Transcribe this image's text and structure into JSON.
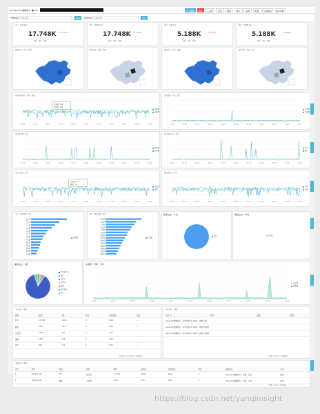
{
  "header": {
    "title": "Kapacitor数据中心",
    "user_prefix": "■ Wor"
  },
  "toolbar": {
    "buttons": [
      {
        "label": "ETC数据",
        "state": "on"
      },
      {
        "label": "刷新",
        "state": "red"
      },
      {
        "label": "三大库",
        "state": ""
      },
      {
        "label": "日志",
        "state": ""
      },
      {
        "label": "报警",
        "state": ""
      },
      {
        "label": "统计",
        "state": ""
      },
      {
        "label": "运维",
        "state": ""
      },
      {
        "label": "配置",
        "state": ""
      },
      {
        "label": "分析报表",
        "state": ""
      },
      {
        "label": "用户管理",
        "state": ""
      }
    ],
    "filters": [
      {
        "label": "开始时间",
        "value": "2019-07"
      },
      {
        "label": "结束时间",
        "value": "2019-07"
      }
    ],
    "query_label": "查询",
    "export_label": "导出"
  },
  "kpis": [
    {
      "title": "今日 · 总量 统计",
      "value": "17.748K",
      "change": "↑ 0.00%",
      "trend": "up",
      "sub": "同比 · 环比 · 趋势"
    },
    {
      "title": "今日 · 收费量 统计",
      "value": "17.748K",
      "change": "↑ 0.00%",
      "trend": "up",
      "sub": "同比 · 环比 · 趋势"
    },
    {
      "title": "本月 · 总量 统计",
      "value": "5.188K",
      "change": "↓ 0.00%",
      "trend": "down",
      "sub": "同比 · 环比 · 趋势"
    },
    {
      "title": "本月 · 收费量 统计",
      "value": "5.188K",
      "change": "↓ 0.00%",
      "trend": "down",
      "sub": "同比 · 环比 · 趋势"
    }
  ],
  "maps": [
    {
      "title": "省份分布 · 今日 · 地图"
    },
    {
      "title": "省份分布 · 收费 · 地图"
    },
    {
      "title": "省份分布 · 本月 · 地图"
    },
    {
      "title": "省份分布 · 收费 · 本月"
    }
  ],
  "line_charts": [
    {
      "title": "实时流量监控 · 30秒 · 刷新",
      "legend": [
        "请求数",
        "响应数"
      ],
      "tooltip": [
        "请求数: 236",
        "响应数: 229"
      ]
    },
    {
      "title": "异常流量 · 平台 · 统计",
      "legend": [
        "异常数",
        "拦截数"
      ],
      "tooltip": []
    },
    {
      "title": "接口调用量 · 统计",
      "legend": [
        "调用量",
        "失败量"
      ],
      "tooltip": []
    },
    {
      "title": "接口响应时间 · 统计",
      "legend": [
        "平均",
        "最大"
      ],
      "tooltip": []
    },
    {
      "title": "接口并发量 · 统计",
      "legend": [
        "并发数",
        "峰值"
      ],
      "tooltip": [
        "并发数: 42",
        "峰值: 58"
      ]
    },
    {
      "title": "服务器负载 · 统计",
      "legend": [
        "CPU",
        "内存"
      ],
      "tooltip": []
    }
  ],
  "x_ticks": [
    "07-01",
    "07-04",
    "07-07",
    "07-10",
    "07-13",
    "07-16",
    "07-19",
    "07-22",
    "07-25",
    "07-28",
    "07-31"
  ],
  "bar_charts": [
    {
      "title": "今日 · 省份收费 · 排行",
      "legend": "收费量",
      "categories": [
        "北京市",
        "上海市",
        "广东省",
        "浙江省",
        "江苏省",
        "山东省",
        "河南省",
        "四川省",
        "湖北省",
        "湖南省",
        "福建省",
        "安徽省",
        "河北省"
      ],
      "values": [
        120,
        95,
        80,
        70,
        55,
        50,
        42,
        38,
        32,
        30,
        26,
        22,
        18
      ]
    },
    {
      "title": "本月 · 省份收费 · 排行",
      "legend": "收费量",
      "categories": [
        "北京市",
        "上海市",
        "广东省",
        "浙江省",
        "江苏省",
        "山东省",
        "河南省",
        "四川省",
        "湖北省",
        "湖南省",
        "福建省",
        "安徽省",
        "河北省",
        "重庆市"
      ],
      "values": [
        130,
        110,
        105,
        95,
        90,
        80,
        78,
        70,
        65,
        60,
        55,
        50,
        45,
        40
      ]
    }
  ],
  "pie_today": {
    "title": "渠道占比 · 今日",
    "legend": [
      "ETC"
    ]
  },
  "pie_month": {
    "title": "渠道占比 · 本月",
    "empty_text": "暂无数据"
  },
  "pie_channel": {
    "title": "渠道占比 · 统计",
    "legend": [
      "ETC客户端",
      "微信",
      "支付宝",
      "CPC卡",
      "银联",
      "其他渠道",
      "APP"
    ],
    "values": [
      85,
      5,
      3,
      2,
      2,
      2,
      1
    ]
  },
  "area_chart": {
    "title": "交易量 · 时间 · 分布",
    "legend": [
      "交易量",
      "收费量"
    ]
  },
  "table1": {
    "title": "今日交易 · 明细",
    "columns": [
      "渠道",
      "收费",
      "量",
      "环比",
      "交易金额",
      "占比"
    ],
    "rows": [
      [
        "ETC",
        "17,748",
        "100%",
        "0",
        "0.00",
        "—"
      ],
      [
        "微信",
        "2817",
        "15.9",
        "0",
        "0.00",
        "—"
      ],
      [
        "支付宝",
        "1074",
        "6.0",
        "0",
        "0.00",
        "—"
      ],
      [
        "银联",
        "1200",
        "6.8",
        "0",
        "0.00",
        "—"
      ],
      [
        "CPC",
        "890",
        "5.0",
        "0",
        "0.00",
        "—"
      ]
    ],
    "pager": "共5条 < 1 2 3 4 5 > 10条/页"
  },
  "table2": {
    "title": "异常交易 · 明细",
    "columns": [
      "交易 ID",
      "时间",
      "",
      "描述",
      "原因"
    ],
    "rows": [
      [
        "Kapacitor数据中心 · 异常交易 ID 0001 · 状态 正常",
        "",
        "",
        "",
        ""
      ],
      [
        "Kapacitor数据中心 · 异常交易 ID 0002 · 状态 待处理",
        "",
        "",
        "",
        ""
      ],
      [
        "Kapacitor数据中心 · 异常交易 ID 0003 · 状态 已处理",
        "",
        "",
        "",
        ""
      ]
    ],
    "pager": "共3条 < 1 2 3 > 10条/页"
  },
  "table3": {
    "title": "全量交易 · 明细",
    "columns": [
      "序号",
      "时间",
      "渠道",
      "省份",
      "收费",
      "交易量",
      "交易金额",
      "环比",
      "描述信息",
      "结果"
    ],
    "rows": [
      [
        "1",
        "2019-07-01",
        "ETC",
        "北京市",
        "17,748",
        "5188",
        "0.00",
        "0",
        "Kapacitor数据中心 · 全量 · 正常",
        "成功"
      ],
      [
        "2",
        "2019-07-02",
        "微信",
        "上海市",
        "2817",
        "1074",
        "0.00",
        "0",
        "Kapacitor数据中心 · 全量 · 正常",
        "成功"
      ]
    ],
    "pager": "共2条 < 1 2 > 10条/页"
  },
  "watermark": "https://blog.csdn.net/yunqiinsight"
}
